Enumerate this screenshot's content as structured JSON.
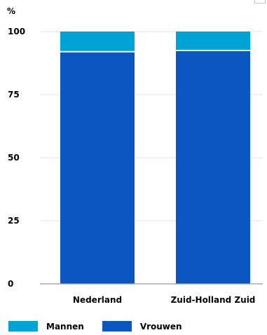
{
  "chart_data": {
    "type": "bar",
    "stacked": true,
    "unit_label": "%",
    "categories": [
      "Nederland",
      "Zuid-Holland Zuid"
    ],
    "series": [
      {
        "name": "Vrouwen",
        "values": [
          92,
          92.5
        ],
        "color": "#0a57c2"
      },
      {
        "name": "Mannen",
        "values": [
          8,
          7.5
        ],
        "color": "#00a3d6"
      }
    ],
    "ylim": [
      0,
      100
    ],
    "yticks": [
      0,
      25,
      50,
      75,
      100
    ],
    "grid": true,
    "legend_position": "bottom-left"
  },
  "legend": {
    "items": [
      {
        "label": "Mannen",
        "color": "#00a3d6"
      },
      {
        "label": "Vrouwen",
        "color": "#0a57c2"
      }
    ]
  }
}
